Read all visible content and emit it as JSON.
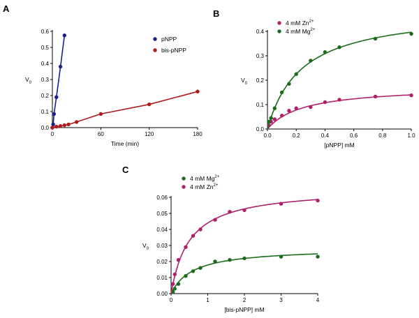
{
  "chart_data": [
    {
      "panel": "A",
      "type": "line",
      "xlabel": "Time (min)",
      "ylabel": "V",
      "ylabel_sub": "0",
      "xlim": [
        0,
        180
      ],
      "ylim": [
        0,
        0.6
      ],
      "xticks": [
        0,
        60,
        120,
        180
      ],
      "yticks": [
        0.0,
        0.1,
        0.2,
        0.3,
        0.4,
        0.5,
        0.6
      ],
      "legend_position": "top-right",
      "series": [
        {
          "name": "pNPP",
          "color": "#1a1f8c",
          "x": [
            0,
            1,
            2,
            5,
            10,
            15
          ],
          "y": [
            0,
            0.02,
            0.085,
            0.19,
            0.38,
            0.575
          ],
          "fit": "linear"
        },
        {
          "name": "bis-pNPP",
          "color": "#b01c1c",
          "x": [
            0,
            5,
            10,
            15,
            20,
            30,
            60,
            120,
            180
          ],
          "y": [
            0,
            0.006,
            0.01,
            0.015,
            0.02,
            0.035,
            0.085,
            0.145,
            0.225
          ],
          "fit": "linear"
        }
      ]
    },
    {
      "panel": "B",
      "type": "scatter",
      "xlabel": "[pNPP] mM",
      "ylabel": "V",
      "ylabel_sub": "0",
      "xlim": [
        0,
        1.0
      ],
      "ylim": [
        0,
        0.4
      ],
      "xticks": [
        0.0,
        0.2,
        0.4,
        0.6,
        0.8,
        1.0
      ],
      "yticks": [
        0.0,
        0.1,
        0.2,
        0.3,
        0.4
      ],
      "legend_position": "top-left",
      "series": [
        {
          "name": "4 mM Zn",
          "sup": "2+",
          "color": "#b0206a",
          "x": [
            0.01,
            0.025,
            0.05,
            0.1,
            0.15,
            0.2,
            0.3,
            0.4,
            0.5,
            0.75,
            1.0
          ],
          "y": [
            0.015,
            0.03,
            0.04,
            0.055,
            0.075,
            0.085,
            0.09,
            0.11,
            0.12,
            0.133,
            0.138
          ],
          "fit": {
            "vmax": 0.175,
            "km": 0.25
          }
        },
        {
          "name": "4 mM Mg",
          "sup": "2+",
          "color": "#1a6b1a",
          "x": [
            0.01,
            0.025,
            0.05,
            0.1,
            0.15,
            0.2,
            0.3,
            0.4,
            0.5,
            0.75,
            1.0
          ],
          "y": [
            0.03,
            0.045,
            0.085,
            0.15,
            0.185,
            0.225,
            0.28,
            0.315,
            0.335,
            0.37,
            0.39
          ],
          "fit": {
            "vmax": 0.49,
            "km": 0.235
          }
        }
      ]
    },
    {
      "panel": "C",
      "type": "scatter",
      "xlabel": "[bis-pNPP] mM",
      "ylabel": "V",
      "ylabel_sub": "0",
      "xlim": [
        0,
        4
      ],
      "ylim": [
        0,
        0.06
      ],
      "xticks": [
        0,
        1,
        2,
        3,
        4
      ],
      "yticks": [
        0.0,
        0.01,
        0.02,
        0.03,
        0.04,
        0.05,
        0.06
      ],
      "legend_position": "top-left",
      "series": [
        {
          "name": "4 mM Mg",
          "sup": "2+",
          "color": "#1a6b1a",
          "x": [
            0.05,
            0.1,
            0.2,
            0.4,
            0.6,
            0.8,
            1.2,
            1.6,
            2.0,
            3.0,
            4.0
          ],
          "y": [
            0.001,
            0.003,
            0.006,
            0.011,
            0.014,
            0.016,
            0.02,
            0.021,
            0.022,
            0.023,
            0.023
          ],
          "fit": {
            "vmax": 0.0285,
            "km": 0.6
          }
        },
        {
          "name": "4 mM Zn",
          "sup": "2+",
          "color": "#b0206a",
          "x": [
            0.05,
            0.1,
            0.2,
            0.4,
            0.6,
            0.8,
            1.2,
            1.6,
            2.0,
            3.0,
            4.0
          ],
          "y": [
            0.006,
            0.012,
            0.021,
            0.029,
            0.036,
            0.04,
            0.046,
            0.051,
            0.052,
            0.056,
            0.058
          ],
          "fit": {
            "vmax": 0.066,
            "km": 0.5
          }
        }
      ]
    }
  ]
}
